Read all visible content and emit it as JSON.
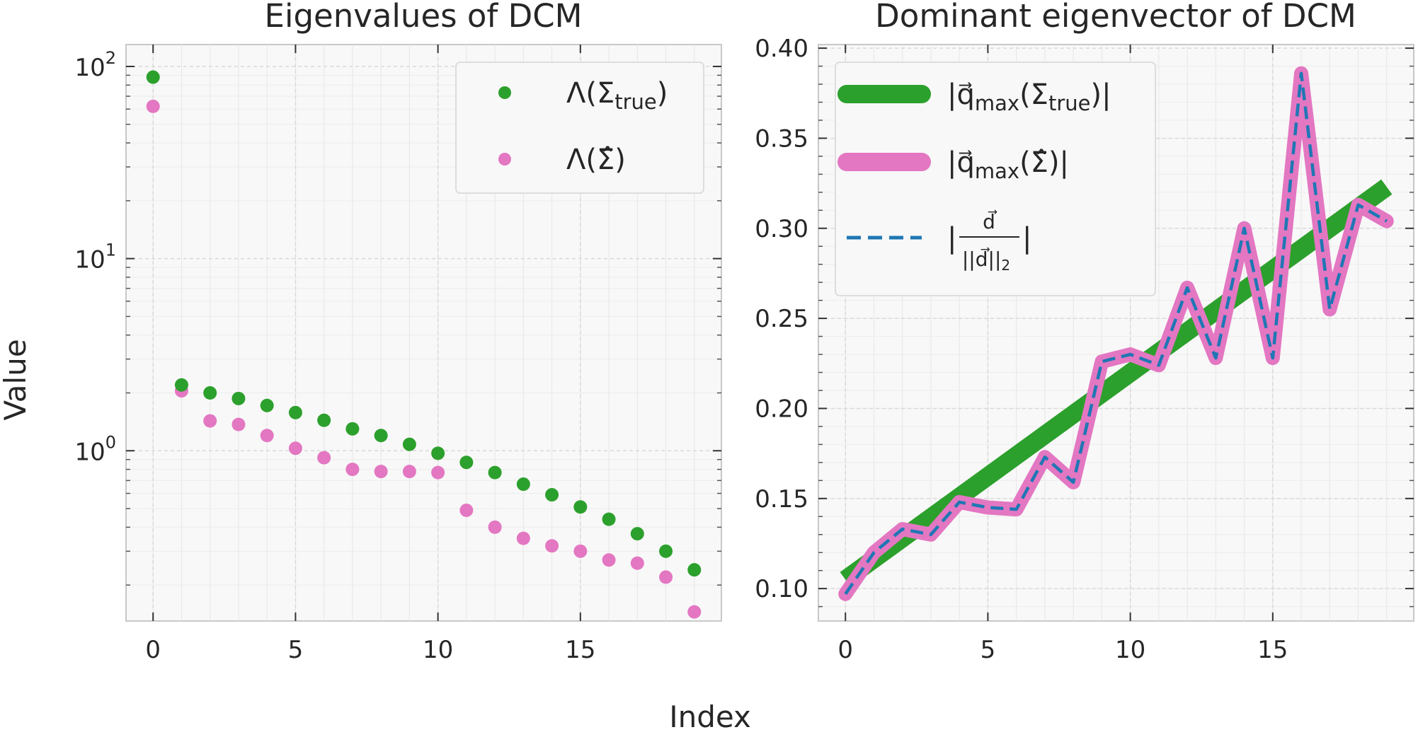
{
  "figure": {
    "ylabel": "Value",
    "xlabel": "Index"
  },
  "colors": {
    "green": "#2ca02c",
    "pink": "#e377c2",
    "blue": "#1f77b4",
    "panel_bg": "#f8f8f8",
    "grid": "#d9d9d9",
    "spine": "#c8c8c8",
    "text": "#262626"
  },
  "chart_data": [
    {
      "type": "scatter",
      "title": "Eigenvalues of DCM",
      "xlabel": "",
      "ylabel": "Value",
      "yscale": "log",
      "xlim": [
        -0.95,
        19.95
      ],
      "ylim": [
        0.13,
        130
      ],
      "xticks": [
        0,
        5,
        10,
        15
      ],
      "xtick_labels": [
        "0",
        "5",
        "10",
        "15"
      ],
      "yticks": [
        {
          "value": 1,
          "base": "10",
          "exp": "0"
        },
        {
          "value": 10,
          "base": "10",
          "exp": "1"
        },
        {
          "value": 100,
          "base": "10",
          "exp": "2"
        }
      ],
      "legend_position": "top-right",
      "series": [
        {
          "name": "Λ(Σtrue)",
          "label_main": "Λ(Σ",
          "label_sub": "true",
          "label_end": ")",
          "color": "#2ca02c",
          "x": [
            0,
            1,
            2,
            3,
            4,
            5,
            6,
            7,
            8,
            9,
            10,
            11,
            12,
            13,
            14,
            15,
            16,
            17,
            18,
            19
          ],
          "values": [
            88,
            2.2,
            2.0,
            1.87,
            1.72,
            1.58,
            1.44,
            1.3,
            1.2,
            1.08,
            0.97,
            0.87,
            0.77,
            0.67,
            0.59,
            0.51,
            0.44,
            0.37,
            0.3,
            0.24
          ]
        },
        {
          "name": "Λ(Σ̂)",
          "label_main": "Λ(Σ̂)",
          "color": "#e377c2",
          "x": [
            0,
            1,
            2,
            3,
            4,
            5,
            6,
            7,
            8,
            9,
            10,
            11,
            12,
            13,
            14,
            15,
            16,
            17,
            18,
            19
          ],
          "values": [
            62,
            2.05,
            1.43,
            1.37,
            1.2,
            1.03,
            0.92,
            0.8,
            0.78,
            0.78,
            0.77,
            0.49,
            0.4,
            0.35,
            0.32,
            0.3,
            0.27,
            0.26,
            0.22,
            0.145
          ]
        }
      ]
    },
    {
      "type": "line",
      "title": "Dominant eigenvector of DCM",
      "xlabel": "Index",
      "ylabel": "",
      "xlim": [
        -0.95,
        19.95
      ],
      "ylim": [
        0.082,
        0.402
      ],
      "xticks": [
        0,
        5,
        10,
        15
      ],
      "xtick_labels": [
        "0",
        "5",
        "10",
        "15"
      ],
      "yticks": [
        0.1,
        0.15,
        0.2,
        0.25,
        0.3,
        0.35,
        0.4
      ],
      "ytick_labels": [
        "0.10",
        "0.15",
        "0.20",
        "0.25",
        "0.30",
        "0.35",
        "0.40"
      ],
      "legend_position": "top-left",
      "series": [
        {
          "name": "|q⃗max(Σtrue)|",
          "label_main": "|q⃗",
          "label_sub": "max",
          "label_mid": "(Σ",
          "label_sub2": "true",
          "label_end": ")|",
          "color": "#2ca02c",
          "style": "thick solid",
          "x": [
            0,
            19
          ],
          "values": [
            0.105,
            0.323
          ]
        },
        {
          "name": "|q⃗max(Σ̂)|",
          "label_main": "|q⃗",
          "label_sub": "max",
          "label_mid": "(Σ̂)|",
          "color": "#e377c2",
          "style": "thick solid",
          "x": [
            0,
            1,
            2,
            3,
            4,
            5,
            6,
            7,
            8,
            9,
            10,
            11,
            12,
            13,
            14,
            15,
            16,
            17,
            18,
            19
          ],
          "values": [
            0.097,
            0.12,
            0.133,
            0.13,
            0.148,
            0.145,
            0.144,
            0.173,
            0.159,
            0.226,
            0.23,
            0.224,
            0.267,
            0.228,
            0.3,
            0.228,
            0.386,
            0.255,
            0.313,
            0.304
          ]
        },
        {
          "name": "|d⃗ / ||d⃗||2|",
          "label_num": "d⃗",
          "label_den": "||d⃗||",
          "label_den_sub": "2",
          "color": "#1f77b4",
          "style": "dashed",
          "x": [
            0,
            1,
            2,
            3,
            4,
            5,
            6,
            7,
            8,
            9,
            10,
            11,
            12,
            13,
            14,
            15,
            16,
            17,
            18,
            19
          ],
          "values": [
            0.097,
            0.12,
            0.133,
            0.13,
            0.148,
            0.145,
            0.144,
            0.173,
            0.159,
            0.226,
            0.23,
            0.224,
            0.267,
            0.228,
            0.3,
            0.228,
            0.386,
            0.255,
            0.313,
            0.304
          ]
        }
      ]
    }
  ]
}
